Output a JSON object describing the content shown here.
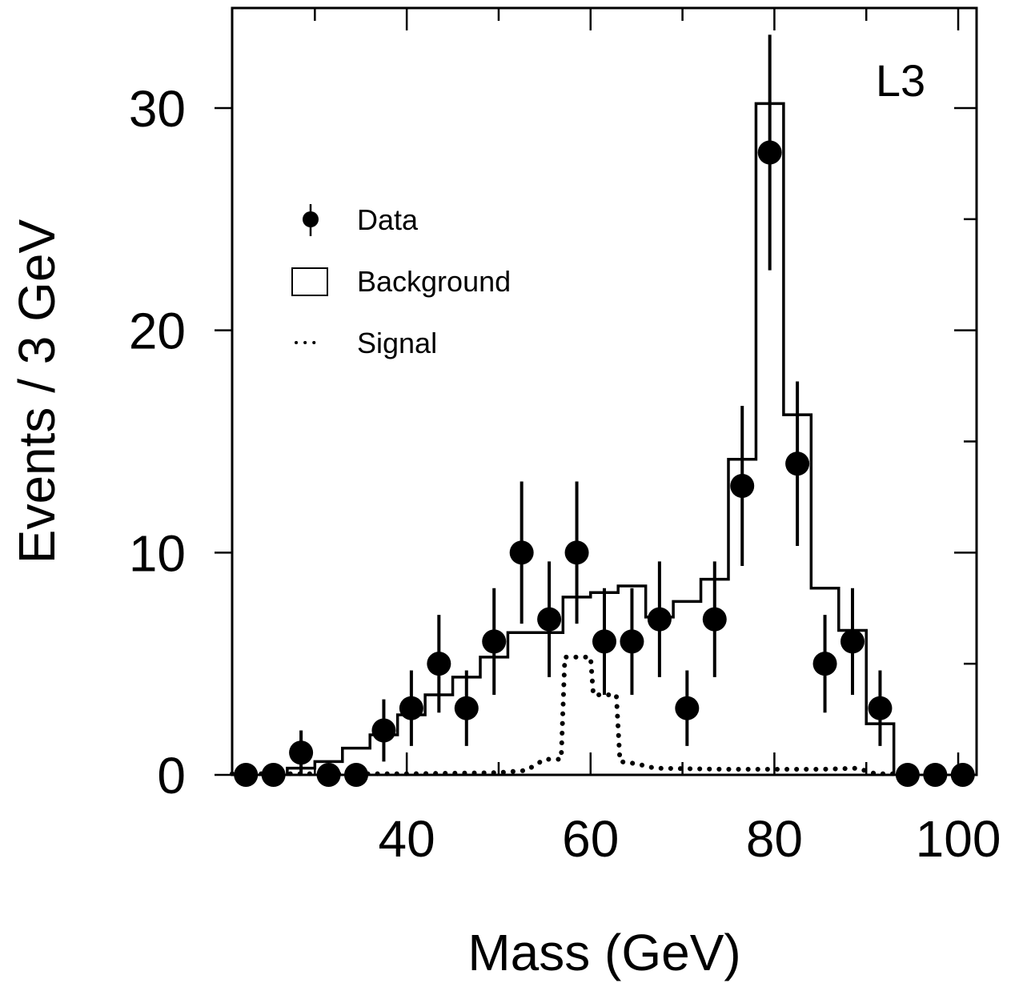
{
  "chart_data": {
    "type": "scatter",
    "title": "",
    "xlabel": "Mass (GeV)",
    "ylabel": "Events / 3 GeV",
    "experiment_label": "L3",
    "xlim": [
      21,
      102
    ],
    "ylim": [
      0,
      34.5
    ],
    "x_ticks_major": [
      40,
      60,
      80,
      100
    ],
    "x_tick_labels": [
      "40",
      "60",
      "80",
      "100"
    ],
    "x_ticks_minor": [
      30,
      50,
      70,
      90
    ],
    "y_ticks_major": [
      0,
      10,
      20,
      30
    ],
    "y_tick_labels": [
      "0",
      "10",
      "20",
      "30"
    ],
    "y_ticks_minor": [
      5,
      15,
      25
    ],
    "grid": false,
    "legend_position": "upper-left",
    "legend": [
      {
        "name": "Data",
        "kind": "marker"
      },
      {
        "name": "Background",
        "kind": "box"
      },
      {
        "name": "Signal",
        "kind": "dotted"
      }
    ],
    "series": [
      {
        "name": "Data",
        "kind": "points",
        "points": [
          {
            "x": 22.5,
            "y": 0,
            "err": 0
          },
          {
            "x": 25.5,
            "y": 0,
            "err": 0
          },
          {
            "x": 28.5,
            "y": 1,
            "err": 1
          },
          {
            "x": 31.5,
            "y": 0,
            "err": 0
          },
          {
            "x": 34.5,
            "y": 0,
            "err": 0
          },
          {
            "x": 37.5,
            "y": 2,
            "err": 1.4
          },
          {
            "x": 40.5,
            "y": 3,
            "err": 1.7
          },
          {
            "x": 43.5,
            "y": 5,
            "err": 2.2
          },
          {
            "x": 46.5,
            "y": 3,
            "err": 1.7
          },
          {
            "x": 49.5,
            "y": 6,
            "err": 2.4
          },
          {
            "x": 52.5,
            "y": 10,
            "err": 3.2
          },
          {
            "x": 55.5,
            "y": 7,
            "err": 2.6
          },
          {
            "x": 58.5,
            "y": 10,
            "err": 3.2
          },
          {
            "x": 61.5,
            "y": 6,
            "err": 2.4
          },
          {
            "x": 64.5,
            "y": 6,
            "err": 2.4
          },
          {
            "x": 67.5,
            "y": 7,
            "err": 2.6
          },
          {
            "x": 70.5,
            "y": 3,
            "err": 1.7
          },
          {
            "x": 73.5,
            "y": 7,
            "err": 2.6
          },
          {
            "x": 76.5,
            "y": 13,
            "err": 3.6
          },
          {
            "x": 79.5,
            "y": 28,
            "err": 5.3
          },
          {
            "x": 82.5,
            "y": 14,
            "err": 3.7
          },
          {
            "x": 85.5,
            "y": 5,
            "err": 2.2
          },
          {
            "x": 88.5,
            "y": 6,
            "err": 2.4
          },
          {
            "x": 91.5,
            "y": 3,
            "err": 1.7
          },
          {
            "x": 94.5,
            "y": 0,
            "err": 0
          },
          {
            "x": 97.5,
            "y": 0,
            "err": 0
          },
          {
            "x": 100.5,
            "y": 0,
            "err": 0
          }
        ]
      },
      {
        "name": "Background",
        "kind": "histogram",
        "bin_edges": [
          27,
          30,
          33,
          36,
          39,
          42,
          45,
          48,
          51,
          54,
          57,
          60,
          63,
          66,
          69,
          72,
          75,
          78,
          81,
          84,
          87,
          90,
          93
        ],
        "values": [
          0.3,
          0.6,
          1.2,
          1.8,
          2.7,
          3.6,
          4.4,
          5.3,
          6.4,
          6.4,
          8.0,
          8.2,
          8.5,
          7.1,
          7.8,
          8.8,
          14.2,
          30.2,
          16.2,
          8.4,
          6.5,
          2.3
        ]
      },
      {
        "name": "Signal",
        "kind": "dotted-curve",
        "points": [
          {
            "x": 21,
            "y": 0.05
          },
          {
            "x": 30,
            "y": 0.05
          },
          {
            "x": 40,
            "y": 0.05
          },
          {
            "x": 50,
            "y": 0.1
          },
          {
            "x": 53,
            "y": 0.2
          },
          {
            "x": 55,
            "y": 0.7
          },
          {
            "x": 56.8,
            "y": 0.7
          },
          {
            "x": 57.2,
            "y": 5.3
          },
          {
            "x": 60,
            "y": 5.3
          },
          {
            "x": 60.3,
            "y": 3.6
          },
          {
            "x": 62.8,
            "y": 3.6
          },
          {
            "x": 63.2,
            "y": 0.6
          },
          {
            "x": 65,
            "y": 0.5
          },
          {
            "x": 67,
            "y": 0.3
          },
          {
            "x": 75,
            "y": 0.25
          },
          {
            "x": 85,
            "y": 0.25
          },
          {
            "x": 89,
            "y": 0.3
          },
          {
            "x": 91,
            "y": 0.05
          },
          {
            "x": 94,
            "y": 0.05
          }
        ]
      }
    ],
    "colors": {
      "ink": "#000000",
      "background": "#ffffff"
    }
  }
}
